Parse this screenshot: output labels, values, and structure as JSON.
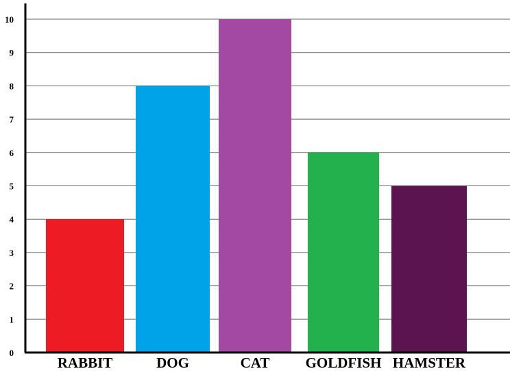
{
  "chart_data": {
    "type": "bar",
    "title": "",
    "xlabel": "",
    "ylabel": "",
    "categories": [
      "RABBIT",
      "DOG",
      "CAT",
      "GOLDFISH",
      "HAMSTER"
    ],
    "values": [
      4,
      8,
      10,
      6,
      5
    ],
    "colors": [
      "#ED1C24",
      "#00A2E8",
      "#A349A4",
      "#22B14C",
      "#5B1450"
    ],
    "ylim": [
      0,
      10
    ],
    "yticks": [
      0,
      1,
      2,
      3,
      4,
      5,
      6,
      7,
      8,
      9,
      10
    ],
    "grid": true,
    "legend": "none"
  }
}
